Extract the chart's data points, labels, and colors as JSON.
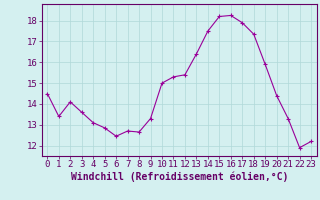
{
  "x": [
    0,
    1,
    2,
    3,
    4,
    5,
    6,
    7,
    8,
    9,
    10,
    11,
    12,
    13,
    14,
    15,
    16,
    17,
    18,
    19,
    20,
    21,
    22,
    23
  ],
  "y": [
    14.5,
    13.4,
    14.1,
    13.6,
    13.1,
    12.85,
    12.45,
    12.7,
    12.65,
    13.3,
    15.0,
    15.3,
    15.4,
    16.4,
    17.5,
    18.2,
    18.25,
    17.9,
    17.35,
    15.9,
    14.4,
    13.3,
    11.9,
    12.2
  ],
  "line_color": "#990099",
  "marker_color": "#990099",
  "bg_color": "#d4f0f0",
  "grid_color": "#b0d8d8",
  "xlabel": "Windchill (Refroidissement éolien,°C)",
  "ylim": [
    11.5,
    18.8
  ],
  "xlim": [
    -0.5,
    23.5
  ],
  "yticks": [
    12,
    13,
    14,
    15,
    16,
    17,
    18
  ],
  "xticks": [
    0,
    1,
    2,
    3,
    4,
    5,
    6,
    7,
    8,
    9,
    10,
    11,
    12,
    13,
    14,
    15,
    16,
    17,
    18,
    19,
    20,
    21,
    22,
    23
  ],
  "xlabel_color": "#660066",
  "tick_color": "#660066",
  "axis_color": "#660066",
  "label_fontsize": 7.0,
  "tick_fontsize": 6.5
}
